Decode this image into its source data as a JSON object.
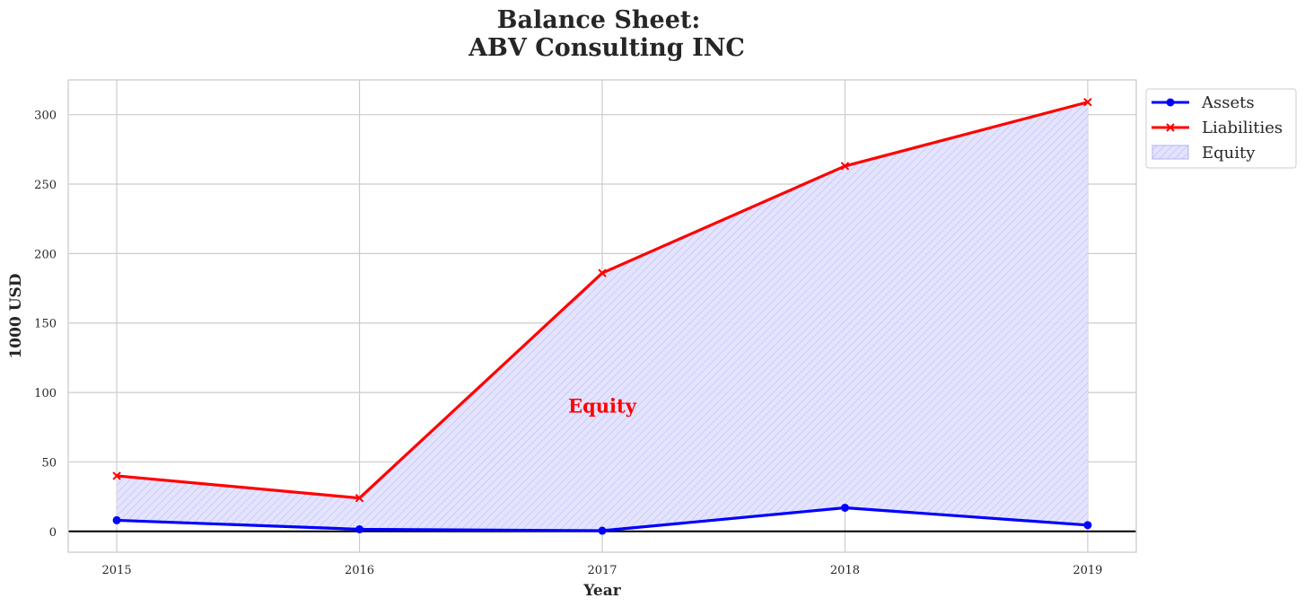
{
  "chart_data": {
    "type": "line",
    "title_line1": "Balance Sheet:",
    "title_line2": "ABV Consulting INC",
    "xlabel": "Year",
    "ylabel": "1000 USD",
    "x": [
      2015,
      2016,
      2017,
      2018,
      2019
    ],
    "x_tick_labels": [
      "2015",
      "2016",
      "2017",
      "2018",
      "2019"
    ],
    "xlim": [
      2014.8,
      2019.2
    ],
    "ylim": [
      -15,
      325
    ],
    "y_ticks": [
      0,
      50,
      100,
      150,
      200,
      250,
      300
    ],
    "grid": true,
    "legend_position": "outside-top-right",
    "series": [
      {
        "name": "Assets",
        "values": [
          8,
          1.5,
          0.5,
          17,
          4.5
        ],
        "color": "#0000ff",
        "marker": "circle"
      },
      {
        "name": "Liabilities",
        "values": [
          40,
          24,
          186,
          263,
          309
        ],
        "color": "#ff0000",
        "marker": "x"
      }
    ],
    "fill": {
      "name": "Equity",
      "between": [
        "Assets",
        "Liabilities"
      ],
      "color": "#0000ff",
      "hatch": "diagonal"
    },
    "annotation": {
      "text": "Equity",
      "x": 2017,
      "y": 90,
      "color": "#ff0000"
    },
    "zero_line_color": "#000000"
  }
}
